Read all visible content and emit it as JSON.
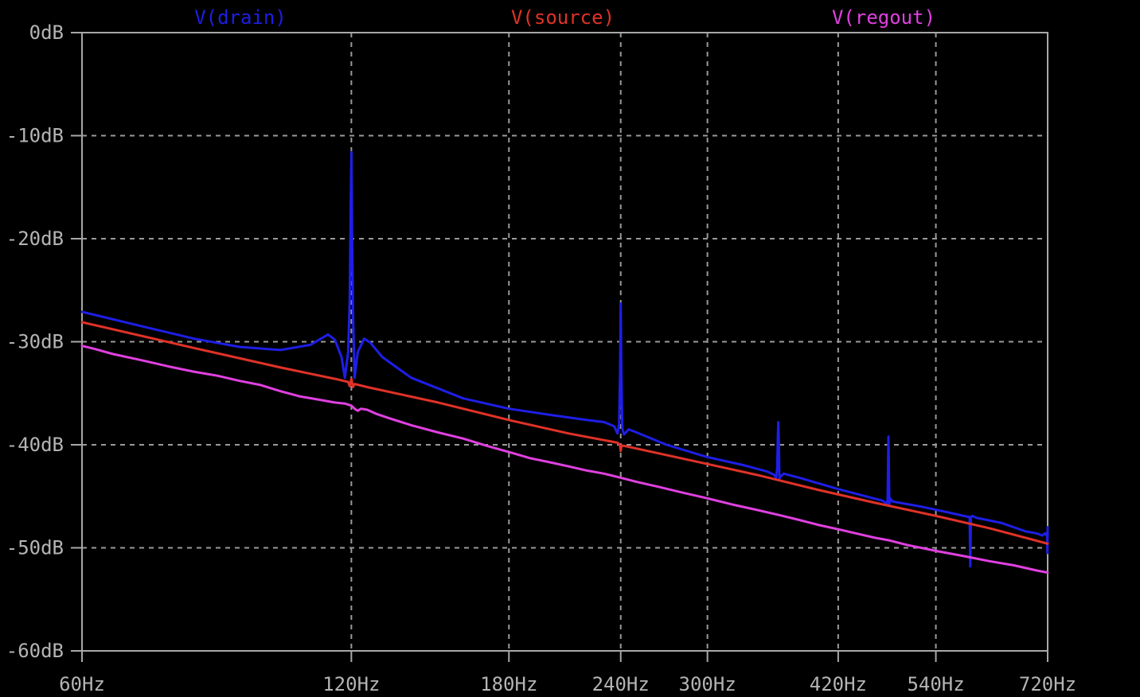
{
  "chart_data": {
    "type": "line",
    "x_scale": "log",
    "xlim": [
      60,
      720
    ],
    "ylim": [
      -60,
      0
    ],
    "grid": true,
    "legend_placement": "top",
    "x_ticks": [
      {
        "value": 60,
        "label": "60Hz"
      },
      {
        "value": 120,
        "label": "120Hz"
      },
      {
        "value": 180,
        "label": "180Hz"
      },
      {
        "value": 240,
        "label": "240Hz"
      },
      {
        "value": 300,
        "label": "300Hz"
      },
      {
        "value": 420,
        "label": "420Hz"
      },
      {
        "value": 540,
        "label": "540Hz"
      },
      {
        "value": 720,
        "label": "720Hz"
      }
    ],
    "y_ticks": [
      {
        "value": 0,
        "label": "0dB"
      },
      {
        "value": -10,
        "label": "-10dB"
      },
      {
        "value": -20,
        "label": "-20dB"
      },
      {
        "value": -30,
        "label": "-30dB"
      },
      {
        "value": -40,
        "label": "-40dB"
      },
      {
        "value": -50,
        "label": "-50dB"
      },
      {
        "value": -60,
        "label": "-60dB"
      }
    ],
    "series": [
      {
        "name": "V(drain)",
        "color": "#1e1ee6",
        "x": [
          60,
          70,
          80,
          90,
          100,
          108,
          113,
          115,
          117,
          118,
          119,
          119.5,
          119.8,
          120,
          120.2,
          120.5,
          121,
          122,
          124,
          126,
          130,
          140,
          160,
          180,
          200,
          220,
          230,
          236,
          238,
          239,
          239.6,
          240,
          240.4,
          241,
          242,
          245,
          250,
          270,
          300,
          330,
          350,
          356,
          358,
          359,
          359.5,
          360,
          360.5,
          361,
          362,
          365,
          380,
          420,
          460,
          470,
          474,
          476,
          477,
          477.5,
          478,
          478.5,
          479,
          480,
          483,
          490,
          520,
          560,
          580,
          587,
          589,
          590,
          591,
          593,
          600,
          640,
          680,
          700,
          710,
          715,
          718,
          719,
          719.5,
          720
        ],
        "y": [
          -27.1,
          -28.5,
          -29.7,
          -30.5,
          -30.8,
          -30.3,
          -29.3,
          -29.8,
          -31.5,
          -33.5,
          -31.0,
          -26.0,
          -17.0,
          -11.6,
          -19.0,
          -27.0,
          -33.5,
          -31.0,
          -29.7,
          -30.1,
          -31.5,
          -33.5,
          -35.5,
          -36.5,
          -37.1,
          -37.6,
          -37.8,
          -38.2,
          -38.9,
          -38.0,
          -33.0,
          -26.3,
          -33.0,
          -38.4,
          -39.0,
          -38.5,
          -38.8,
          -40.0,
          -41.2,
          -42.0,
          -42.6,
          -42.9,
          -43.2,
          -42.2,
          -39.5,
          -37.8,
          -39.5,
          -43.3,
          -43.1,
          -42.8,
          -43.2,
          -44.3,
          -45.2,
          -45.4,
          -45.6,
          -45.8,
          -45.2,
          -42.0,
          -39.2,
          -42.0,
          -45.8,
          -45.2,
          -45.5,
          -45.6,
          -46.0,
          -46.6,
          -46.9,
          -47.0,
          -47.0,
          -51.8,
          -47.0,
          -46.9,
          -47.1,
          -47.6,
          -48.4,
          -48.6,
          -48.8,
          -48.6,
          -48.8,
          -48.5,
          -50.5,
          -48.0
        ]
      },
      {
        "name": "V(source)",
        "color": "#e03228",
        "x": [
          60,
          80,
          100,
          115,
          119,
          119.5,
          120,
          120.5,
          121,
          125,
          150,
          180,
          210,
          238,
          239.5,
          240,
          240.5,
          242,
          280,
          340,
          400,
          460,
          540,
          620,
          720
        ],
        "y": [
          -28.1,
          -30.6,
          -32.5,
          -33.6,
          -33.9,
          -34.3,
          -33.6,
          -34.4,
          -34.1,
          -34.4,
          -35.9,
          -37.6,
          -38.9,
          -39.8,
          -40.0,
          -40.6,
          -40.1,
          -40.1,
          -41.3,
          -42.9,
          -44.4,
          -45.6,
          -46.9,
          -48.1,
          -49.6
        ]
      },
      {
        "name": "V(regout)",
        "color": "#e040e0",
        "x": [
          60,
          62,
          65,
          70,
          75,
          80,
          85,
          90,
          95,
          100,
          105,
          110,
          115,
          118,
          120,
          121,
          122,
          123,
          125,
          128,
          132,
          140,
          150,
          160,
          170,
          180,
          190,
          200,
          210,
          220,
          230,
          240,
          250,
          265,
          280,
          300,
          320,
          340,
          360,
          380,
          400,
          420,
          440,
          460,
          480,
          500,
          540,
          580,
          620,
          660,
          700,
          720
        ],
        "y": [
          -30.4,
          -30.7,
          -31.2,
          -31.8,
          -32.4,
          -32.9,
          -33.3,
          -33.8,
          -34.2,
          -34.8,
          -35.3,
          -35.6,
          -35.9,
          -36.0,
          -36.2,
          -36.5,
          -36.7,
          -36.5,
          -36.6,
          -37.0,
          -37.4,
          -38.1,
          -38.8,
          -39.4,
          -40.1,
          -40.7,
          -41.3,
          -41.7,
          -42.1,
          -42.5,
          -42.8,
          -43.2,
          -43.6,
          -44.1,
          -44.6,
          -45.2,
          -45.8,
          -46.3,
          -46.8,
          -47.3,
          -47.8,
          -48.2,
          -48.6,
          -49.0,
          -49.3,
          -49.7,
          -50.3,
          -50.8,
          -51.3,
          -51.7,
          -52.2,
          -52.4
        ]
      }
    ]
  }
}
